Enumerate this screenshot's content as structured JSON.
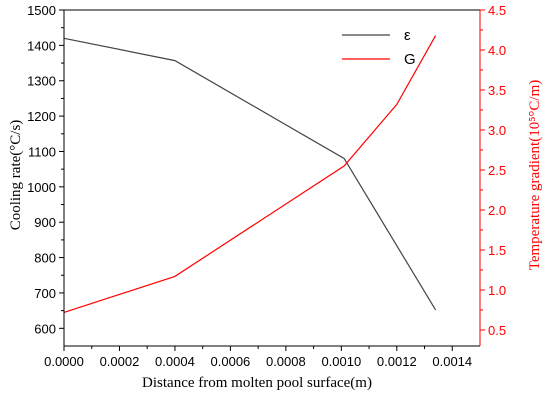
{
  "chart_data": {
    "type": "line",
    "xlabel": "Distance from molten pool surface(m)",
    "ylabel_left": "Cooling rate(°C/s)",
    "ylabel_right": "Temperature gradient(10⁵°C/m)",
    "xlim": [
      0,
      0.0015
    ],
    "ylim_left": [
      550,
      1500
    ],
    "ylim_right": [
      0.3,
      4.5
    ],
    "x_ticks": [
      "0.0000",
      "0.0002",
      "0.0004",
      "0.0006",
      "0.0008",
      "0.0010",
      "0.0012",
      "0.0014"
    ],
    "y_left_ticks": [
      "600",
      "700",
      "800",
      "900",
      "1000",
      "1100",
      "1200",
      "1300",
      "1400",
      "1500"
    ],
    "y_right_ticks": [
      "0.5",
      "1.0",
      "1.5",
      "2.0",
      "2.5",
      "3.0",
      "3.5",
      "4.0",
      "4.5"
    ],
    "legend_placement": "top-right",
    "grid": false,
    "right_axis_color": "#ff0000",
    "series": [
      {
        "name": "ε",
        "axis": "left",
        "color": "#444444",
        "x": [
          0,
          0.0004,
          0.00101,
          0.00134
        ],
        "y": [
          1420,
          1357,
          1080,
          652
        ]
      },
      {
        "name": "G",
        "axis": "right",
        "color": "#ff0000",
        "x": [
          0,
          0.0004,
          0.00101,
          0.0012,
          0.00134
        ],
        "y": [
          0.72,
          1.17,
          2.55,
          3.32,
          4.18
        ]
      }
    ]
  }
}
